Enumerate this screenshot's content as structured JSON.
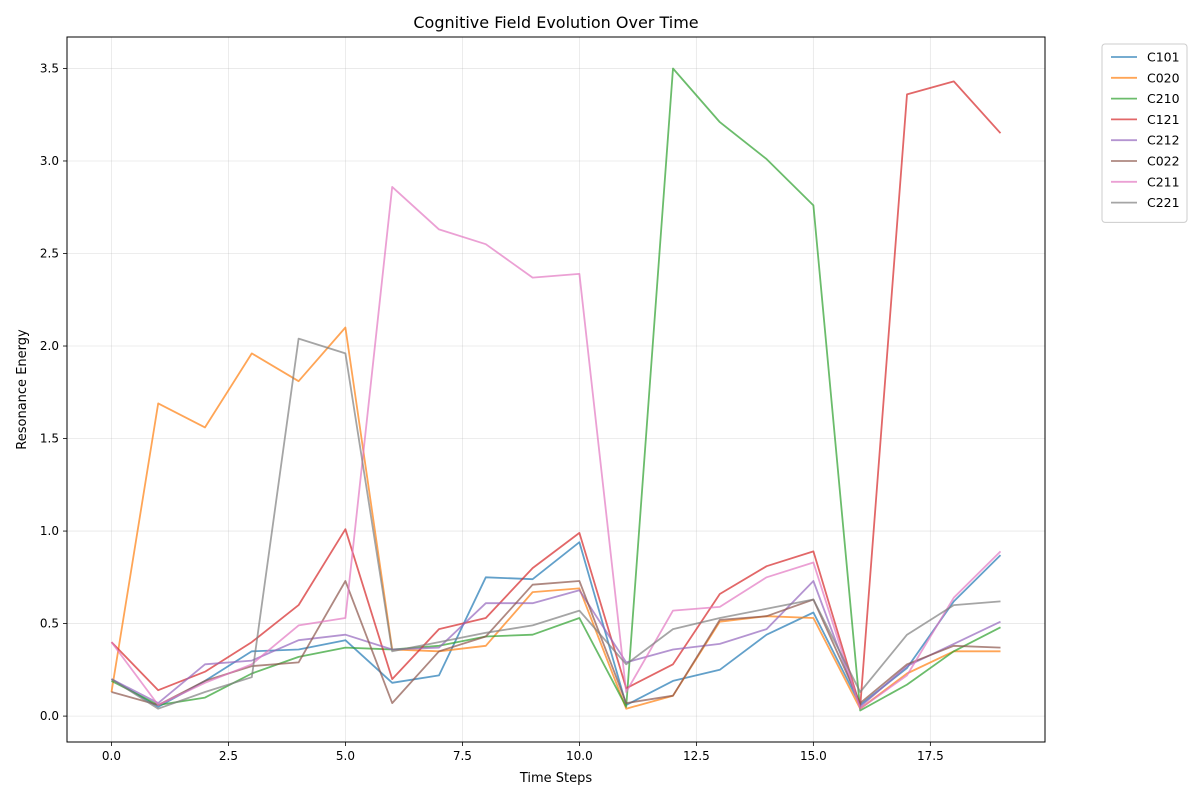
{
  "chart_data": {
    "type": "line",
    "title": "Cognitive Field Evolution Over Time",
    "xlabel": "Time Steps",
    "ylabel": "Resonance Energy",
    "xlim": [
      -0.95,
      19.95
    ],
    "ylim": [
      -0.14,
      3.67
    ],
    "xticks": [
      0.0,
      2.5,
      5.0,
      7.5,
      10.0,
      12.5,
      15.0,
      17.5
    ],
    "xtick_labels": [
      "0.0",
      "2.5",
      "5.0",
      "7.5",
      "10.0",
      "12.5",
      "15.0",
      "17.5"
    ],
    "yticks": [
      0.0,
      0.5,
      1.0,
      1.5,
      2.0,
      2.5,
      3.0,
      3.5
    ],
    "ytick_labels": [
      "0.0",
      "0.5",
      "1.0",
      "1.5",
      "2.0",
      "2.5",
      "3.0",
      "3.5"
    ],
    "grid": true,
    "legend_position": "outside top-right",
    "x": [
      0,
      1,
      2,
      3,
      4,
      5,
      6,
      7,
      8,
      9,
      10,
      11,
      12,
      13,
      14,
      15,
      16,
      17,
      18,
      19
    ],
    "series": [
      {
        "name": "C101",
        "color": "#1f77b4",
        "values": [
          0.2,
          0.05,
          0.19,
          0.35,
          0.36,
          0.41,
          0.18,
          0.22,
          0.75,
          0.74,
          0.94,
          0.06,
          0.19,
          0.25,
          0.44,
          0.56,
          0.06,
          0.26,
          0.62,
          0.87
        ]
      },
      {
        "name": "C020",
        "color": "#ff7f0e",
        "values": [
          0.13,
          1.69,
          1.56,
          1.96,
          1.81,
          2.1,
          0.36,
          0.35,
          0.38,
          0.67,
          0.69,
          0.04,
          0.11,
          0.51,
          0.54,
          0.53,
          0.04,
          0.23,
          0.35,
          0.35
        ]
      },
      {
        "name": "C210",
        "color": "#2ca02c",
        "values": [
          0.19,
          0.06,
          0.1,
          0.23,
          0.32,
          0.37,
          0.36,
          0.38,
          0.43,
          0.44,
          0.53,
          0.05,
          3.5,
          3.21,
          3.01,
          2.76,
          0.03,
          0.17,
          0.35,
          0.48
        ]
      },
      {
        "name": "C121",
        "color": "#d62728",
        "values": [
          0.4,
          0.14,
          0.24,
          0.4,
          0.6,
          1.01,
          0.2,
          0.47,
          0.53,
          0.8,
          0.99,
          0.15,
          0.28,
          0.66,
          0.81,
          0.89,
          0.05,
          3.36,
          3.43,
          3.15
        ]
      },
      {
        "name": "C212",
        "color": "#9467bd",
        "values": [
          0.2,
          0.07,
          0.28,
          0.3,
          0.41,
          0.44,
          0.36,
          0.37,
          0.61,
          0.61,
          0.68,
          0.29,
          0.36,
          0.39,
          0.47,
          0.73,
          0.05,
          0.27,
          0.39,
          0.51
        ]
      },
      {
        "name": "C022",
        "color": "#8c564b",
        "values": [
          0.13,
          0.06,
          0.19,
          0.27,
          0.29,
          0.73,
          0.07,
          0.35,
          0.43,
          0.71,
          0.73,
          0.07,
          0.11,
          0.52,
          0.54,
          0.63,
          0.07,
          0.28,
          0.38,
          0.37
        ]
      },
      {
        "name": "C211",
        "color": "#e377c2",
        "values": [
          0.4,
          0.06,
          0.18,
          0.28,
          0.49,
          0.53,
          2.86,
          2.63,
          2.55,
          2.37,
          2.39,
          0.13,
          0.57,
          0.59,
          0.75,
          0.83,
          0.04,
          0.22,
          0.64,
          0.89
        ]
      },
      {
        "name": "C221",
        "color": "#7f7f7f",
        "values": [
          0.2,
          0.04,
          0.13,
          0.21,
          2.04,
          1.96,
          0.35,
          0.4,
          0.45,
          0.49,
          0.57,
          0.28,
          0.47,
          0.53,
          0.58,
          0.63,
          0.13,
          0.44,
          0.6,
          0.62
        ]
      }
    ]
  }
}
